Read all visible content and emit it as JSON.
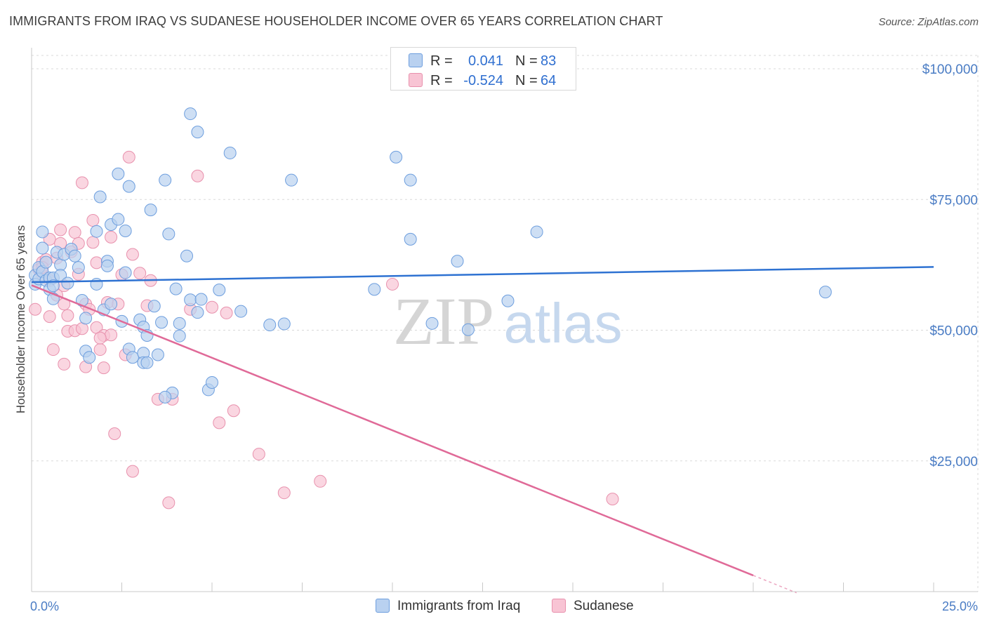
{
  "title": "IMMIGRANTS FROM IRAQ VS SUDANESE HOUSEHOLDER INCOME OVER 65 YEARS CORRELATION CHART",
  "source": "Source: ZipAtlas.com",
  "watermark": {
    "zip": "ZIP",
    "atlas": "atlas"
  },
  "stats": {
    "rows": [
      {
        "r_label": "R =",
        "r_value": "0.041",
        "n_label": "N =",
        "n_value": "83"
      },
      {
        "r_label": "R =",
        "r_value": "-0.524",
        "n_label": "N =",
        "n_value": "64"
      }
    ]
  },
  "legend": {
    "items": [
      {
        "label": "Immigrants from Iraq"
      },
      {
        "label": "Sudanese"
      }
    ]
  },
  "colors": {
    "iraq_fill": "#b9d1f0",
    "iraq_stroke": "#6d9ede",
    "iraq_line": "#2e72d2",
    "sudan_fill": "#f8c4d4",
    "sudan_stroke": "#e891ad",
    "sudan_line": "#e06a98",
    "tick_text": "#4a7cc4",
    "grid": "#d9d9d9"
  },
  "chart_data": {
    "type": "scatter",
    "title": "IMMIGRANTS FROM IRAQ VS SUDANESE HOUSEHOLDER INCOME OVER 65 YEARS CORRELATION CHART",
    "xlabel": "",
    "ylabel": "Householder Income Over 65 years",
    "xlim": [
      0,
      25
    ],
    "ylim": [
      0,
      105000
    ],
    "x_tick_labels": [
      "0.0%",
      "25.0%"
    ],
    "y_ticks": [
      {
        "value": 25000,
        "label": "$25,000"
      },
      {
        "value": 50000,
        "label": "$50,000"
      },
      {
        "value": 75000,
        "label": "$75,000"
      },
      {
        "value": 100000,
        "label": "$100,000"
      }
    ],
    "series": [
      {
        "name": "Immigrants from Iraq",
        "R": 0.041,
        "N": 83,
        "trend": {
          "x": [
            0,
            25
          ],
          "y": [
            59200,
            62100
          ]
        },
        "points": [
          [
            0.1,
            60500
          ],
          [
            0.1,
            58800
          ],
          [
            0.2,
            62000
          ],
          [
            0.2,
            59800
          ],
          [
            0.3,
            61200
          ],
          [
            0.3,
            65700
          ],
          [
            0.3,
            68800
          ],
          [
            0.4,
            59500
          ],
          [
            0.4,
            63000
          ],
          [
            0.5,
            60000
          ],
          [
            0.5,
            57800
          ],
          [
            0.6,
            60000
          ],
          [
            0.6,
            56000
          ],
          [
            0.7,
            64900
          ],
          [
            0.8,
            62500
          ],
          [
            0.8,
            60500
          ],
          [
            0.9,
            64500
          ],
          [
            1.0,
            59000
          ],
          [
            1.1,
            65500
          ],
          [
            1.2,
            64200
          ],
          [
            1.3,
            62000
          ],
          [
            1.4,
            55700
          ],
          [
            1.5,
            52300
          ],
          [
            1.5,
            46000
          ],
          [
            1.6,
            44800
          ],
          [
            1.8,
            58800
          ],
          [
            1.8,
            68900
          ],
          [
            1.9,
            75500
          ],
          [
            2.0,
            53900
          ],
          [
            2.1,
            63200
          ],
          [
            2.1,
            62300
          ],
          [
            2.2,
            55000
          ],
          [
            2.2,
            70200
          ],
          [
            2.4,
            71200
          ],
          [
            2.4,
            79900
          ],
          [
            2.5,
            51700
          ],
          [
            2.6,
            61000
          ],
          [
            2.6,
            69000
          ],
          [
            2.7,
            46400
          ],
          [
            2.7,
            77500
          ],
          [
            2.8,
            44800
          ],
          [
            3.0,
            52000
          ],
          [
            3.1,
            50600
          ],
          [
            3.1,
            45600
          ],
          [
            3.1,
            43800
          ],
          [
            3.2,
            49000
          ],
          [
            3.2,
            43800
          ],
          [
            3.3,
            73000
          ],
          [
            3.4,
            54600
          ],
          [
            3.5,
            45300
          ],
          [
            3.6,
            51500
          ],
          [
            3.7,
            78700
          ],
          [
            3.8,
            68400
          ],
          [
            3.9,
            38000
          ],
          [
            4.0,
            57900
          ],
          [
            4.1,
            48900
          ],
          [
            4.1,
            51300
          ],
          [
            4.3,
            64200
          ],
          [
            4.4,
            55800
          ],
          [
            4.4,
            91400
          ],
          [
            4.6,
            53400
          ],
          [
            4.6,
            87900
          ],
          [
            4.7,
            55900
          ],
          [
            4.9,
            38600
          ],
          [
            5.0,
            40000
          ],
          [
            5.2,
            57700
          ],
          [
            5.5,
            83900
          ],
          [
            5.8,
            53600
          ],
          [
            6.6,
            51000
          ],
          [
            7.0,
            51200
          ],
          [
            7.2,
            78700
          ],
          [
            9.5,
            57800
          ],
          [
            10.1,
            83100
          ],
          [
            10.5,
            78700
          ],
          [
            10.5,
            67400
          ],
          [
            11.1,
            51300
          ],
          [
            11.8,
            63200
          ],
          [
            12.1,
            50100
          ],
          [
            13.2,
            55600
          ],
          [
            14.0,
            68800
          ],
          [
            22.0,
            57300
          ],
          [
            3.7,
            37200
          ],
          [
            0.6,
            58500
          ]
        ]
      },
      {
        "name": "Sudanese",
        "R": -0.524,
        "N": 64,
        "trend": {
          "x": [
            0,
            20
          ],
          "y": [
            58600,
            3100
          ]
        },
        "points": [
          [
            0.1,
            54000
          ],
          [
            0.2,
            61600
          ],
          [
            0.3,
            60600
          ],
          [
            0.3,
            63000
          ],
          [
            0.4,
            63500
          ],
          [
            0.5,
            59500
          ],
          [
            0.5,
            67400
          ],
          [
            0.5,
            52600
          ],
          [
            0.6,
            46300
          ],
          [
            0.7,
            56700
          ],
          [
            0.7,
            63800
          ],
          [
            0.8,
            69200
          ],
          [
            0.8,
            66600
          ],
          [
            0.9,
            58500
          ],
          [
            0.9,
            55000
          ],
          [
            0.9,
            43500
          ],
          [
            1.0,
            52800
          ],
          [
            1.0,
            49800
          ],
          [
            1.1,
            65000
          ],
          [
            1.2,
            49900
          ],
          [
            1.2,
            68700
          ],
          [
            1.3,
            66600
          ],
          [
            1.3,
            60700
          ],
          [
            1.4,
            78200
          ],
          [
            1.4,
            50300
          ],
          [
            1.5,
            55000
          ],
          [
            1.5,
            43000
          ],
          [
            1.6,
            54000
          ],
          [
            1.7,
            71000
          ],
          [
            1.7,
            66800
          ],
          [
            1.8,
            62900
          ],
          [
            1.8,
            50500
          ],
          [
            1.9,
            46300
          ],
          [
            2.0,
            49000
          ],
          [
            2.0,
            42800
          ],
          [
            2.1,
            55300
          ],
          [
            2.2,
            49100
          ],
          [
            2.2,
            67800
          ],
          [
            2.3,
            30200
          ],
          [
            2.4,
            55000
          ],
          [
            2.5,
            60600
          ],
          [
            2.6,
            45300
          ],
          [
            2.7,
            83100
          ],
          [
            2.8,
            23000
          ],
          [
            2.8,
            64500
          ],
          [
            3.0,
            60900
          ],
          [
            3.2,
            54700
          ],
          [
            3.3,
            59500
          ],
          [
            3.5,
            36800
          ],
          [
            3.8,
            17000
          ],
          [
            3.9,
            36800
          ],
          [
            4.4,
            54000
          ],
          [
            4.6,
            79500
          ],
          [
            5.0,
            54400
          ],
          [
            5.2,
            32300
          ],
          [
            5.4,
            53300
          ],
          [
            5.6,
            34600
          ],
          [
            6.3,
            26300
          ],
          [
            7.0,
            18900
          ],
          [
            8.0,
            21100
          ],
          [
            10.0,
            58800
          ],
          [
            16.1,
            17700
          ],
          [
            0.3,
            62000
          ],
          [
            1.9,
            48500
          ]
        ]
      }
    ]
  }
}
